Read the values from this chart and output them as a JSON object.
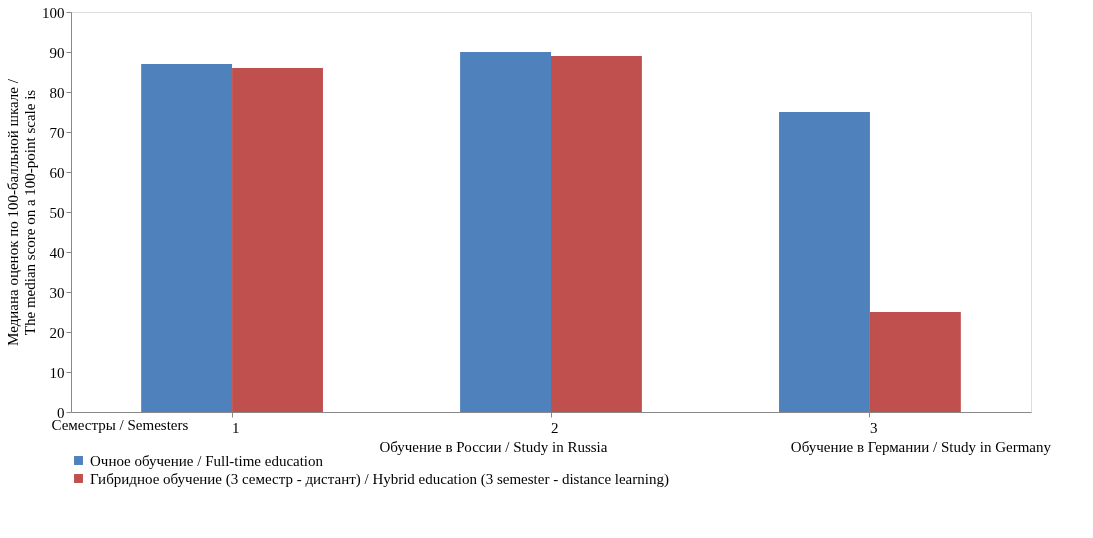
{
  "chart_data": {
    "type": "bar",
    "categories": [
      "1",
      "2",
      "3"
    ],
    "xlabel": "Семестры / Semesters",
    "ylabel": "Медиана оценок по 100-балльной шкале / The median score on a 100-point scale is",
    "series": [
      {
        "name": "Очное обучение / Full-time education",
        "color": "#4f81bd",
        "values": [
          87,
          90,
          75
        ]
      },
      {
        "name": "Гибридное обучение (3 семестр - дистант) / Hybrid education (3 semester - distance learning)",
        "color": "#c0504d",
        "values": [
          86,
          89,
          25
        ]
      }
    ],
    "annotations": [
      "Обучение в России  / Study in Russia",
      "Обучение в Германии / Study in  Germany"
    ],
    "ylim": [
      0,
      100
    ],
    "yticks": [
      0,
      10,
      20,
      30,
      40,
      50,
      60,
      70,
      80,
      90,
      100
    ],
    "grid": false,
    "legend": "bottom"
  }
}
